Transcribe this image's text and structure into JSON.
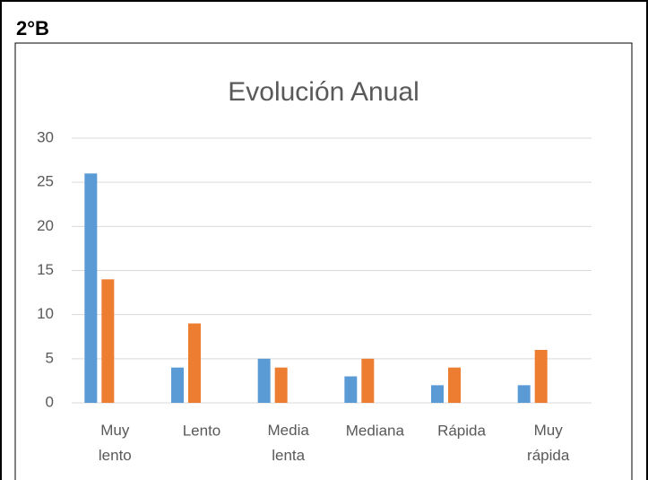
{
  "label": "2°B",
  "chart_data": {
    "type": "bar",
    "title": "Evolución Anual",
    "categories": [
      "Muy lento",
      "Lento",
      "Media lenta",
      "Mediana",
      "Rápida",
      "Muy rápida"
    ],
    "series": [
      {
        "color": "#5b9bd5",
        "values": [
          26,
          4,
          5,
          3,
          2,
          2
        ]
      },
      {
        "color": "#ed7d31",
        "values": [
          14,
          9,
          4,
          5,
          4,
          6
        ]
      }
    ],
    "ylim": [
      0,
      30
    ],
    "yticks": [
      0,
      5,
      10,
      15,
      20,
      25,
      30
    ],
    "grid": true
  }
}
